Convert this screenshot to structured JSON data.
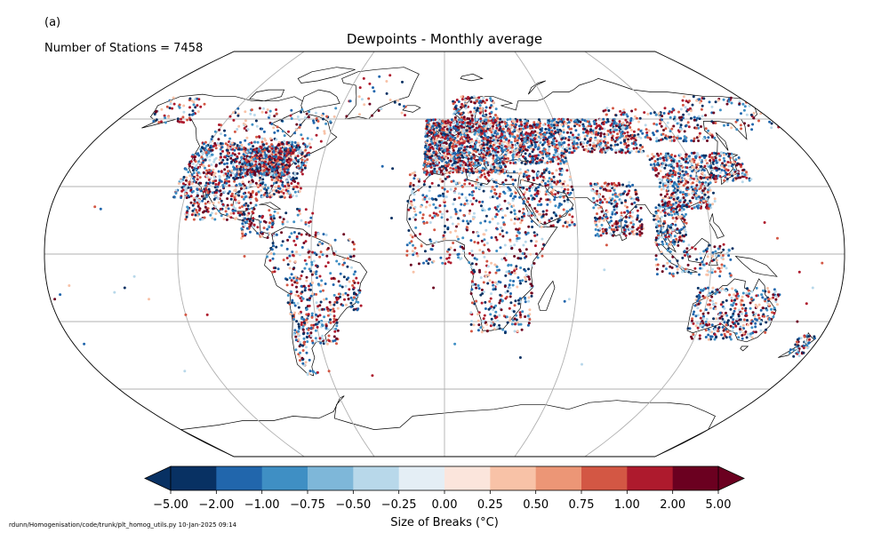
{
  "panel_label": "(a)",
  "stations_text": "Number of Stations = 7458",
  "title": "Dewpoints - Monthly average",
  "colorbar": {
    "label": "Size of Breaks ($^\\circ$C)",
    "label_display": "Size of Breaks (°C)",
    "tick_labels": [
      "-5.00",
      "-2.00",
      "-1.00",
      "-0.75",
      "-0.50",
      "-0.25",
      "0.00",
      "0.25",
      "0.50",
      "0.75",
      "1.00",
      "2.00",
      "5.00"
    ],
    "bins": [
      -5.0,
      -2.0,
      -1.0,
      -0.75,
      -0.5,
      -0.25,
      0.0,
      0.25,
      0.5,
      0.75,
      1.0,
      2.0,
      5.0
    ],
    "colors": [
      "#083163",
      "#2166ac",
      "#3f8fc4",
      "#7eb7d9",
      "#b8d8ea",
      "#e4eef5",
      "#fbe5dc",
      "#f8c2a7",
      "#ec9676",
      "#d35744",
      "#ae1a2d",
      "#6b0020"
    ],
    "extend": "both"
  },
  "footer": "rdunn/Homogenisation/code/trunk/plt_homog_utils.py   10-Jan-2025 09:14",
  "map": {
    "projection": "Robinson",
    "central_longitude": 0,
    "graticule_lon_step": 60,
    "graticule_lat_step": 30,
    "marker_colors": [
      "#083163",
      "#2166ac",
      "#3f8fc4",
      "#b8d8ea",
      "#f8c2a7",
      "#d35744",
      "#ae1a2d",
      "#6b0020"
    ]
  }
}
